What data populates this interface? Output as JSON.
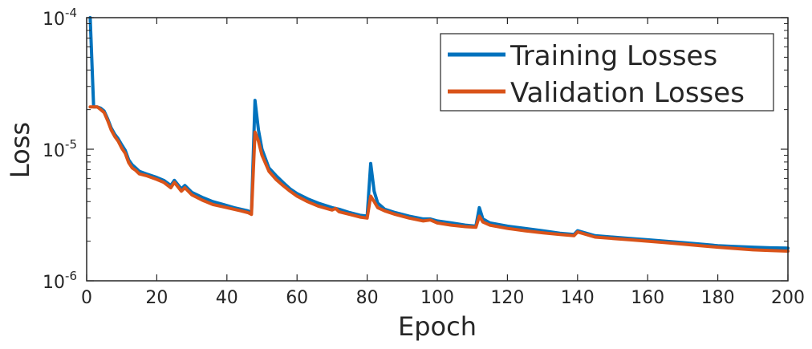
{
  "chart_data": {
    "type": "line",
    "title": "",
    "xlabel": "Epoch",
    "ylabel": "Loss",
    "xlim": [
      0,
      200
    ],
    "ylim": [
      1e-06,
      0.0001
    ],
    "yscale": "log",
    "grid": false,
    "legend_position": "top-right",
    "x_ticks": [
      0,
      20,
      40,
      60,
      80,
      100,
      120,
      140,
      160,
      180,
      200
    ],
    "x_tick_labels": [
      "0",
      "20",
      "40",
      "60",
      "80",
      "100",
      "120",
      "140",
      "160",
      "180",
      "200"
    ],
    "y_ticks": [
      1e-06,
      1e-05,
      0.0001
    ],
    "y_tick_bases": [
      "10",
      "10",
      "10"
    ],
    "y_tick_exponents": [
      "-6",
      "-5",
      "-4"
    ],
    "series": [
      {
        "name": "Training Losses",
        "color": "#0072BD",
        "x": [
          1,
          2,
          3,
          4,
          5,
          6,
          7,
          8,
          9,
          10,
          11,
          12,
          13,
          14,
          15,
          17,
          20,
          22,
          24,
          25,
          27,
          28,
          30,
          33,
          36,
          39,
          42,
          44,
          46,
          47,
          48,
          49,
          50,
          52,
          54,
          56,
          58,
          60,
          63,
          66,
          70,
          72,
          75,
          78,
          80,
          81,
          82,
          83,
          85,
          88,
          92,
          96,
          98,
          100,
          104,
          108,
          111,
          112,
          113,
          115,
          120,
          125,
          130,
          135,
          139,
          140,
          145,
          150,
          155,
          160,
          165,
          170,
          175,
          180,
          185,
          190,
          195,
          200
        ],
        "y": [
          0.00012,
          2.1e-05,
          2.1e-05,
          2.05e-05,
          1.95e-05,
          1.7e-05,
          1.45e-05,
          1.3e-05,
          1.2e-05,
          1.08e-05,
          9.8e-06,
          8.3e-06,
          7.6e-06,
          7.2e-06,
          6.8e-06,
          6.5e-06,
          6.1e-06,
          5.8e-06,
          5.3e-06,
          5.8e-06,
          5e-06,
          5.3e-06,
          4.7e-06,
          4.3e-06,
          4e-06,
          3.8e-06,
          3.6e-06,
          3.5e-06,
          3.4e-06,
          3.3e-06,
          2.35e-05,
          1.4e-05,
          1e-05,
          7.2e-06,
          6.3e-06,
          5.6e-06,
          5e-06,
          4.6e-06,
          4.2e-06,
          3.9e-06,
          3.6e-06,
          3.5e-06,
          3.3e-06,
          3.15e-06,
          3.1e-06,
          7.8e-06,
          4.8e-06,
          3.9e-06,
          3.5e-06,
          3.3e-06,
          3.1e-06,
          2.95e-06,
          2.95e-06,
          2.85e-06,
          2.75e-06,
          2.65e-06,
          2.6e-06,
          3.6e-06,
          2.95e-06,
          2.75e-06,
          2.6e-06,
          2.5e-06,
          2.4e-06,
          2.3e-06,
          2.25e-06,
          2.4e-06,
          2.2e-06,
          2.15e-06,
          2.1e-06,
          2.05e-06,
          2e-06,
          1.95e-06,
          1.9e-06,
          1.85e-06,
          1.82e-06,
          1.8e-06,
          1.78e-06,
          1.77e-06
        ]
      },
      {
        "name": "Validation Losses",
        "color": "#D95319",
        "x": [
          1,
          2,
          3,
          4,
          5,
          6,
          7,
          8,
          9,
          10,
          11,
          12,
          13,
          14,
          15,
          17,
          20,
          22,
          24,
          25,
          27,
          28,
          30,
          33,
          36,
          39,
          42,
          44,
          46,
          47,
          48,
          49,
          50,
          52,
          54,
          56,
          58,
          60,
          63,
          66,
          70,
          71,
          72,
          75,
          78,
          80,
          81,
          82,
          83,
          85,
          88,
          92,
          96,
          98,
          100,
          104,
          108,
          111,
          112,
          113,
          115,
          120,
          125,
          130,
          135,
          139,
          140,
          145,
          150,
          155,
          160,
          165,
          170,
          175,
          180,
          185,
          190,
          195,
          200
        ],
        "y": [
          2.1e-05,
          2.1e-05,
          2.1e-05,
          2e-05,
          1.9e-05,
          1.65e-05,
          1.4e-05,
          1.25e-05,
          1.15e-05,
          1.02e-05,
          9.3e-06,
          7.9e-06,
          7.2e-06,
          6.9e-06,
          6.5e-06,
          6.3e-06,
          5.9e-06,
          5.6e-06,
          5.1e-06,
          5.6e-06,
          4.8e-06,
          5.1e-06,
          4.5e-06,
          4.1e-06,
          3.8e-06,
          3.65e-06,
          3.5e-06,
          3.4e-06,
          3.3e-06,
          3.2e-06,
          1.35e-05,
          1.15e-05,
          9e-06,
          6.8e-06,
          5.9e-06,
          5.3e-06,
          4.8e-06,
          4.4e-06,
          4e-06,
          3.7e-06,
          3.45e-06,
          3.55e-06,
          3.35e-06,
          3.2e-06,
          3.05e-06,
          3e-06,
          4.4e-06,
          4e-06,
          3.6e-06,
          3.4e-06,
          3.2e-06,
          3e-06,
          2.85e-06,
          2.9e-06,
          2.75e-06,
          2.65e-06,
          2.58e-06,
          2.55e-06,
          3.1e-06,
          2.8e-06,
          2.65e-06,
          2.5e-06,
          2.4e-06,
          2.32e-06,
          2.25e-06,
          2.2e-06,
          2.35e-06,
          2.15e-06,
          2.1e-06,
          2.05e-06,
          2e-06,
          1.95e-06,
          1.9e-06,
          1.85e-06,
          1.8e-06,
          1.76e-06,
          1.72e-06,
          1.7e-06,
          1.68e-06
        ]
      }
    ]
  }
}
